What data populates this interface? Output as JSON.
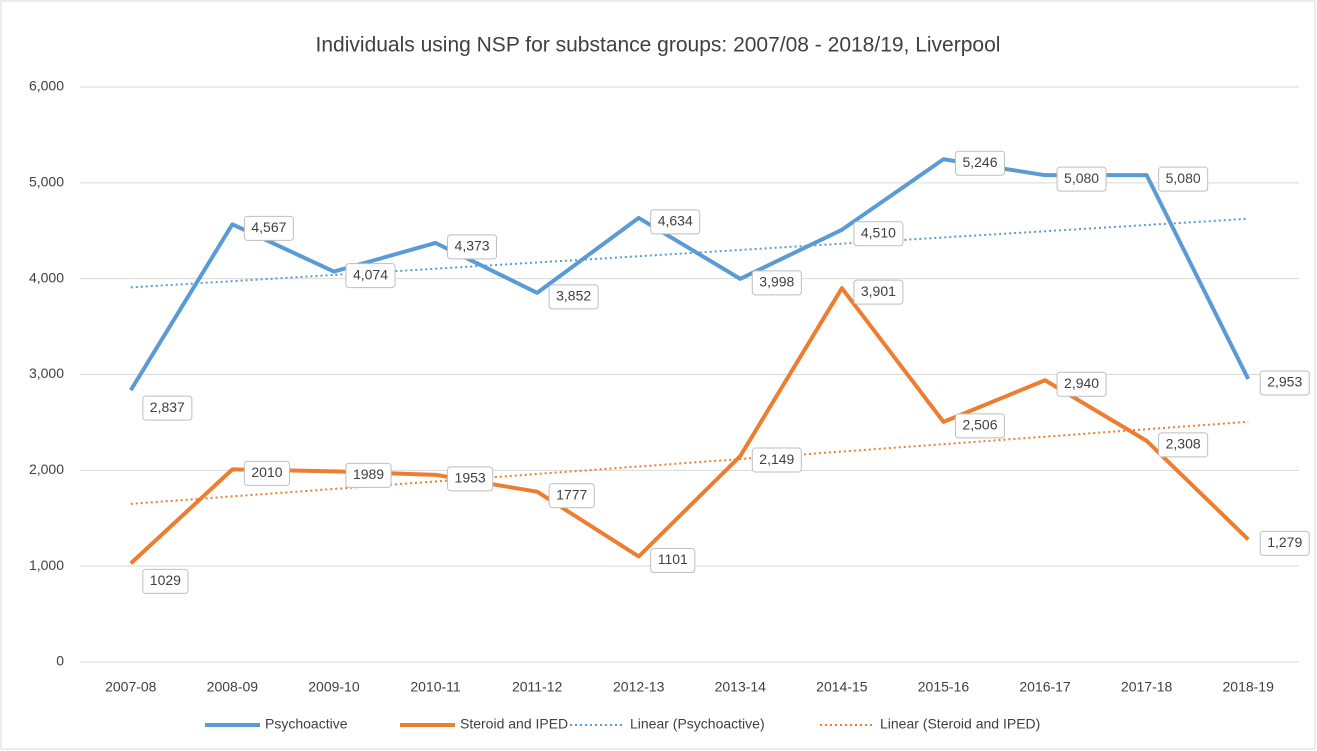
{
  "chart_data": {
    "type": "line",
    "title": "Individuals using NSP for substance groups: 2007/08 - 2018/19, Liverpool",
    "categories": [
      "2007-08",
      "2008-09",
      "2009-10",
      "2010-11",
      "2011-12",
      "2012-13",
      "2013-14",
      "2014-15",
      "2015-16",
      "2016-17",
      "2017-18",
      "2018-19"
    ],
    "series": [
      {
        "name": "Psychoactive",
        "color": "#5b9bd5",
        "style": "solid",
        "values": [
          2837,
          4567,
          4074,
          4373,
          3852,
          4634,
          3998,
          4510,
          5246,
          5080,
          5080,
          2953
        ],
        "value_labels": [
          "2,837",
          "4,567",
          "4,074",
          "4,373",
          "3,852",
          "4,634",
          "3,998",
          "4,510",
          "5,246",
          "5,080",
          "5,080",
          "2,953"
        ]
      },
      {
        "name": "Steroid and IPED",
        "color": "#ed7d31",
        "style": "solid",
        "values": [
          1029,
          2010,
          1989,
          1953,
          1777,
          1101,
          2149,
          3901,
          2506,
          2940,
          2308,
          1279
        ],
        "value_labels": [
          "1029",
          "2010",
          "1989",
          "1953",
          "1777",
          "1101",
          "2,149",
          "3,901",
          "2,506",
          "2,940",
          "2,308",
          "1,279"
        ]
      },
      {
        "name": "Linear (Psychoactive)",
        "color": "#5b9bd5",
        "style": "dotted",
        "values": [
          3909,
          3974,
          4039,
          4104,
          4169,
          4234,
          4300,
          4365,
          4430,
          4495,
          4560,
          4625
        ]
      },
      {
        "name": "Linear (Steroid and IPED)",
        "color": "#ed7d31",
        "style": "dotted",
        "values": [
          1650,
          1728,
          1806,
          1884,
          1962,
          2040,
          2118,
          2196,
          2273,
          2351,
          2429,
          2507
        ]
      }
    ],
    "ylim": [
      0,
      6000
    ],
    "yticks": [
      0,
      {
        "value": 1000,
        "label": "1,000"
      },
      {
        "value": 2000,
        "label": "2,000"
      },
      {
        "value": 3000,
        "label": "3,000"
      },
      {
        "value": 4000,
        "label": "4,000"
      },
      {
        "value": 5000,
        "label": "5,000"
      },
      {
        "value": 6000,
        "label": "6,000"
      }
    ],
    "grid": true,
    "legend": "bottom"
  }
}
